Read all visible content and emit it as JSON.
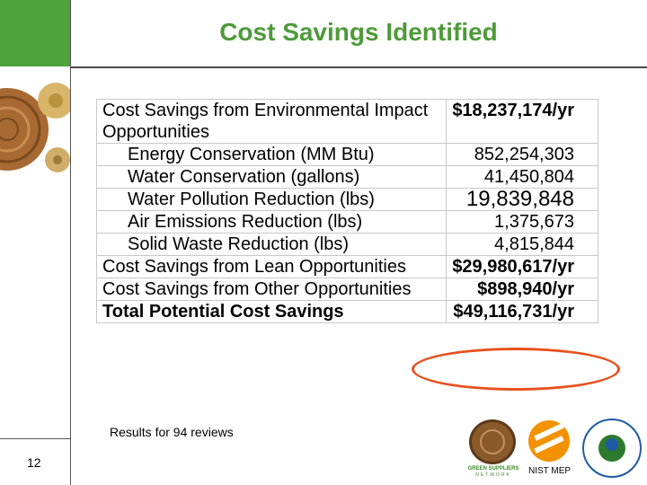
{
  "title": "Cost Savings Identified",
  "rows": [
    {
      "label": "Cost Savings from Environmental Impact Opportunities",
      "value": "$18,237,174/yr"
    },
    {
      "label": "Energy Conservation (MM Btu)",
      "value": "852,254,303"
    },
    {
      "label": "Water Conservation (gallons)",
      "value": "41,450,804"
    },
    {
      "label": "Water Pollution Reduction (lbs)",
      "value": "19,839,848"
    },
    {
      "label": "Air Emissions Reduction (lbs)",
      "value": "1,375,673"
    },
    {
      "label": "Solid Waste Reduction (lbs)",
      "value": "4,815,844"
    },
    {
      "label": "Cost Savings from Lean Opportunities",
      "value": "$29,980,617/yr"
    },
    {
      "label": "Cost Savings from Other Opportunities",
      "value": "$898,940/yr"
    },
    {
      "label": "Total Potential Cost Savings",
      "value": "$49,116,731/yr"
    }
  ],
  "footer": {
    "results": "Results for 94 reviews",
    "page_number": "12",
    "nist_label": "NIST MEP",
    "gsn_logo_line1": "GREEN SUPPLIERS",
    "gsn_logo_line2": "NETWORK"
  },
  "colors": {
    "title": "#4e9a3a",
    "header_box": "#4fa33a",
    "highlight_circle": "#e8501e"
  }
}
